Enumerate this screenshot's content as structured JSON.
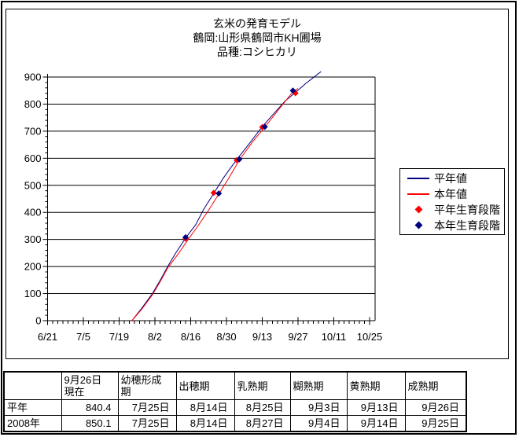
{
  "chart_data": {
    "type": "line",
    "title": "玄米の発育モデル",
    "subtitle_location": "鶴岡:山形県鶴岡市KH圃場",
    "subtitle_variety": "品種:コシヒカリ",
    "grid": "horizontal",
    "x_axis": {
      "tick_labels": [
        "6/21",
        "7/5",
        "7/19",
        "8/2",
        "8/16",
        "8/30",
        "9/13",
        "9/27",
        "10/11",
        "10/25"
      ],
      "tick_interval_days": 14,
      "minor_tick_interval_days": 2
    },
    "y_axis": {
      "min": 0,
      "max": 900,
      "tick_interval": 100,
      "minor_tick_interval": 20,
      "tick_labels": [
        "0",
        "100",
        "200",
        "300",
        "400",
        "500",
        "600",
        "700",
        "800",
        "900"
      ]
    },
    "legend": {
      "position": "right"
    },
    "series": [
      {
        "name": "平年値",
        "kind": "line",
        "color": "#000080",
        "points": [
          {
            "date": "7/24",
            "day": 33,
            "value": 0
          },
          {
            "date": "7/28",
            "day": 37,
            "value": 48
          },
          {
            "date": "8/1",
            "day": 41,
            "value": 100
          },
          {
            "date": "8/4",
            "day": 44,
            "value": 148
          },
          {
            "date": "8/7",
            "day": 47,
            "value": 200
          },
          {
            "date": "8/10",
            "day": 50,
            "value": 248
          },
          {
            "date": "8/14",
            "day": 54,
            "value": 305
          },
          {
            "date": "8/18",
            "day": 58,
            "value": 355
          },
          {
            "date": "8/21",
            "day": 61,
            "value": 410
          },
          {
            "date": "8/25",
            "day": 65,
            "value": 470
          },
          {
            "date": "8/29",
            "day": 69,
            "value": 530
          },
          {
            "date": "9/3",
            "day": 74,
            "value": 595
          },
          {
            "date": "9/8",
            "day": 79,
            "value": 655
          },
          {
            "date": "9/13",
            "day": 84,
            "value": 717
          },
          {
            "date": "9/18",
            "day": 89,
            "value": 770
          },
          {
            "date": "9/22",
            "day": 93,
            "value": 812
          },
          {
            "date": "9/26",
            "day": 97,
            "value": 843
          },
          {
            "date": "9/30",
            "day": 101,
            "value": 876
          },
          {
            "date": "10/3",
            "day": 104,
            "value": 898
          },
          {
            "date": "10/6",
            "day": 107,
            "value": 920
          }
        ]
      },
      {
        "name": "本年値",
        "kind": "line",
        "color": "#ff0000",
        "points": [
          {
            "date": "7/24",
            "day": 33,
            "value": 0
          },
          {
            "date": "7/28",
            "day": 37,
            "value": 44
          },
          {
            "date": "8/1",
            "day": 41,
            "value": 95
          },
          {
            "date": "8/4",
            "day": 44,
            "value": 143
          },
          {
            "date": "8/7",
            "day": 47,
            "value": 195
          },
          {
            "date": "8/11",
            "day": 51,
            "value": 245
          },
          {
            "date": "8/15",
            "day": 55,
            "value": 300
          },
          {
            "date": "8/19",
            "day": 59,
            "value": 352
          },
          {
            "date": "8/23",
            "day": 63,
            "value": 408
          },
          {
            "date": "8/27",
            "day": 67,
            "value": 468
          },
          {
            "date": "8/31",
            "day": 71,
            "value": 528
          },
          {
            "date": "9/4",
            "day": 75,
            "value": 593
          },
          {
            "date": "9/9",
            "day": 80,
            "value": 658
          },
          {
            "date": "9/14",
            "day": 85,
            "value": 715
          },
          {
            "date": "9/19",
            "day": 90,
            "value": 775
          },
          {
            "date": "9/23",
            "day": 94,
            "value": 822
          },
          {
            "date": "9/25",
            "day": 96,
            "value": 845
          },
          {
            "date": "9/27",
            "day": 98,
            "value": 858
          }
        ]
      },
      {
        "name": "平年生育段階",
        "kind": "scatter",
        "marker": "diamond",
        "color": "#ff0000",
        "points": [
          {
            "date": "8/14",
            "day": 54,
            "value": 303
          },
          {
            "date": "8/25",
            "day": 65,
            "value": 472
          },
          {
            "date": "9/3",
            "day": 74,
            "value": 593
          },
          {
            "date": "9/13",
            "day": 84,
            "value": 715
          },
          {
            "date": "9/26",
            "day": 97,
            "value": 840.4
          }
        ]
      },
      {
        "name": "本年生育段階",
        "kind": "scatter",
        "marker": "diamond",
        "color": "#000080",
        "points": [
          {
            "date": "8/14",
            "day": 54,
            "value": 308
          },
          {
            "date": "8/27",
            "day": 67,
            "value": 470
          },
          {
            "date": "9/4",
            "day": 75,
            "value": 596
          },
          {
            "date": "9/14",
            "day": 85,
            "value": 716
          },
          {
            "date": "9/25",
            "day": 96,
            "value": 850.1
          }
        ]
      }
    ]
  },
  "table": {
    "headers": [
      "",
      "9月26日\n現在",
      "幼穂形成\n期",
      "出穂期",
      "乳熟期",
      "糊熟期",
      "黄熟期",
      "成熟期"
    ],
    "rows": [
      {
        "label": "平年",
        "values": [
          "840.4",
          "7月25日",
          "8月14日",
          "8月25日",
          "9月3日",
          "9月13日",
          "9月26日"
        ]
      },
      {
        "label": "2008年",
        "values": [
          "850.1",
          "7月25日",
          "8月14日",
          "8月27日",
          "9月4日",
          "9月14日",
          "9月25日"
        ]
      }
    ]
  },
  "colors": {
    "normal_year_line": "#000080",
    "current_year_line": "#ff0000",
    "normal_year_stage_marker": "#ff0000",
    "current_year_stage_marker": "#000080",
    "axis": "#000000",
    "background": "#ffffff"
  }
}
